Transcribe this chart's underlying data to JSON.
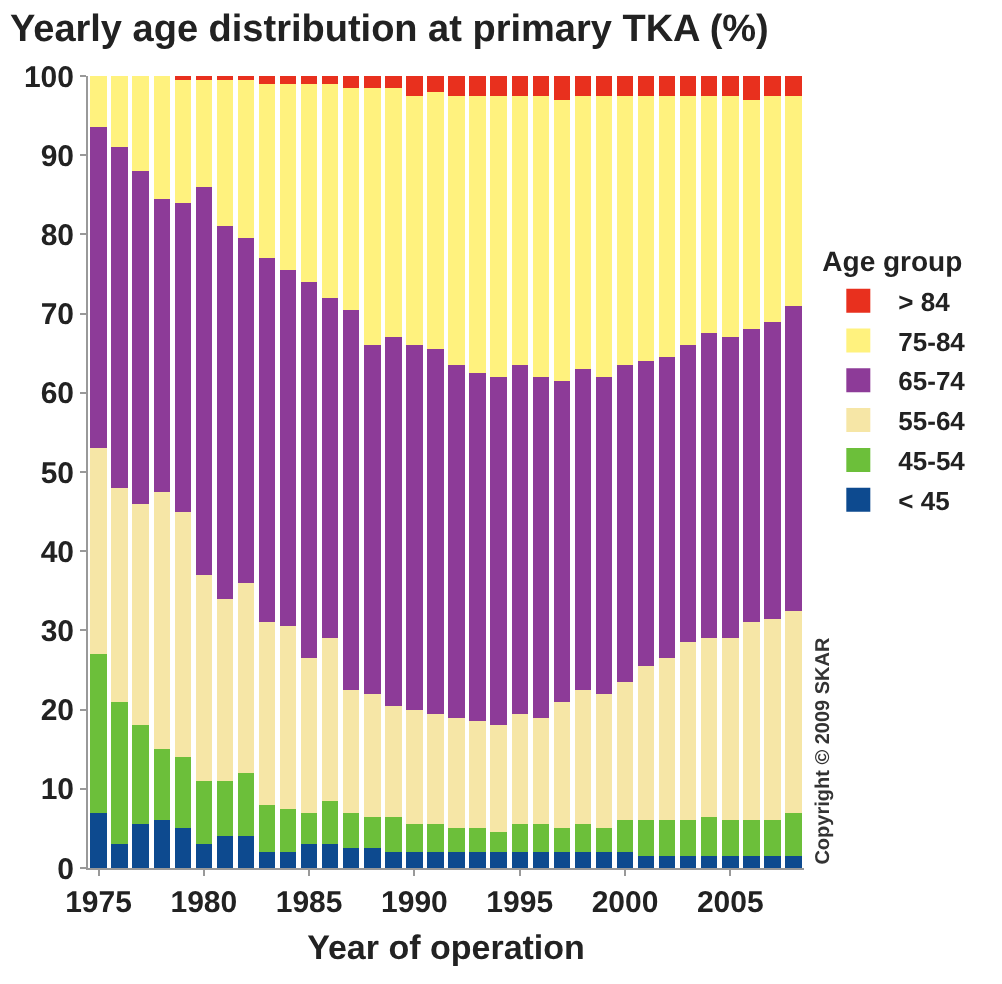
{
  "chart_data": {
    "type": "bar",
    "stacked": true,
    "title": "Yearly age distribution at primary TKA (%)",
    "xlabel": "Year of operation",
    "legend_title": "Age group",
    "legend": "right",
    "grid": false,
    "x": [
      1975,
      1976,
      1977,
      1978,
      1979,
      1980,
      1981,
      1982,
      1983,
      1984,
      1985,
      1986,
      1987,
      1988,
      1989,
      1990,
      1991,
      1992,
      1993,
      1994,
      1995,
      1996,
      1997,
      1998,
      1999,
      2000,
      2001,
      2002,
      2003,
      2004,
      2005,
      2006,
      2007,
      2008
    ],
    "xlim": [
      1974.5,
      2008.5
    ],
    "xticks": [
      1975,
      1980,
      1985,
      1990,
      1995,
      2000,
      2005
    ],
    "ylim": [
      0,
      100
    ],
    "yticks": [
      0,
      10,
      20,
      30,
      40,
      50,
      60,
      70,
      80,
      90,
      100
    ],
    "series": [
      {
        "name": "< 45",
        "color": "#0d4a8f",
        "values": [
          7,
          3,
          5.5,
          6,
          5,
          3,
          4,
          4,
          2,
          2,
          3,
          3,
          2.5,
          2.5,
          2,
          2,
          2,
          2,
          2,
          2,
          2,
          2,
          2,
          2,
          2,
          2,
          1.5,
          1.5,
          1.5,
          1.5,
          1.5,
          1.5,
          1.5,
          1.5
        ]
      },
      {
        "name": "45-54",
        "color": "#6cbf3a",
        "values": [
          20,
          18,
          12.5,
          9,
          9,
          8,
          7,
          8,
          6,
          5.5,
          4,
          5.5,
          4.5,
          4,
          4.5,
          3.5,
          3.5,
          3,
          3,
          2.5,
          3.5,
          3.5,
          3,
          3.5,
          3,
          4,
          4.5,
          4.5,
          4.5,
          5,
          4.5,
          4.5,
          4.5,
          5.5
        ]
      },
      {
        "name": "55-64",
        "color": "#f6e6a6",
        "values": [
          26,
          27,
          28,
          32.5,
          31,
          26,
          23,
          24,
          23,
          23,
          19.5,
          20.5,
          15.5,
          15.5,
          14,
          14.5,
          14,
          14,
          13.5,
          13.5,
          14,
          13.5,
          16,
          17,
          17,
          17.5,
          19.5,
          20.5,
          22.5,
          22.5,
          23,
          25,
          25.5,
          25.5
        ]
      },
      {
        "name": "65-74",
        "color": "#8d3b98",
        "values": [
          40.5,
          43,
          42,
          37,
          39,
          49,
          47,
          43.5,
          46,
          45,
          47.5,
          43,
          48,
          44,
          46.5,
          46,
          46,
          44.5,
          44,
          44,
          44,
          43,
          40.5,
          40.5,
          40,
          40,
          38.5,
          38,
          37.5,
          38.5,
          38,
          37,
          37.5,
          38.5
        ]
      },
      {
        "name": "75-84",
        "color": "#fff27e",
        "values": [
          6.5,
          9,
          12,
          15.5,
          15.5,
          13.5,
          18.5,
          20,
          22,
          23.5,
          25,
          27,
          28,
          32.5,
          31.5,
          31.5,
          32.5,
          34,
          35,
          35.5,
          34,
          35.5,
          35.5,
          34.5,
          35.5,
          34,
          33.5,
          33,
          31.5,
          30,
          30.5,
          29,
          28.5,
          26.5
        ]
      },
      {
        "name": "> 84",
        "color": "#e8301e",
        "values": [
          0,
          0,
          0,
          0,
          0.5,
          0.5,
          0.5,
          0.5,
          1,
          1,
          1,
          1,
          1.5,
          1.5,
          1.5,
          2.5,
          2,
          2.5,
          2.5,
          2.5,
          2.5,
          2.5,
          3,
          2.5,
          2.5,
          2.5,
          2.5,
          2.5,
          2.5,
          2.5,
          2.5,
          3,
          2.5,
          2.5
        ]
      }
    ],
    "annotations": [
      "Copyright © 2009 SKAR"
    ]
  }
}
